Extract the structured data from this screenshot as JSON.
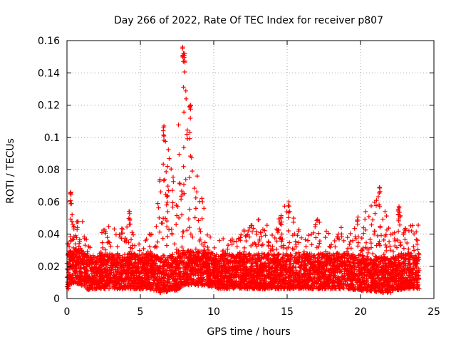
{
  "chart_data": {
    "type": "scatter",
    "title": "Day 266 of 2022, Rate Of TEC Index for receiver p807",
    "xlabel": "GPS time / hours",
    "ylabel": "ROTI / TECUs",
    "xlim": [
      0,
      25
    ],
    "ylim": [
      0,
      0.16
    ],
    "xticks": [
      0,
      5,
      10,
      15,
      20,
      25
    ],
    "xtick_labels": [
      "0",
      "5",
      "10",
      "15",
      "20",
      "25"
    ],
    "yticks": [
      0,
      0.02,
      0.04,
      0.06,
      0.08,
      0.1,
      0.12,
      0.14,
      0.16
    ],
    "ytick_labels": [
      "0",
      "0.02",
      "0.04",
      "0.06",
      "0.08",
      "0.1",
      "0.12",
      "0.14",
      "0.16"
    ],
    "grid": true,
    "marker": "plus",
    "color": "#ff0000",
    "series": [
      {
        "name": "ROTI",
        "envelope": [
          [
            0.0,
            0.005,
            0.035
          ],
          [
            0.25,
            0.008,
            0.066
          ],
          [
            0.5,
            0.01,
            0.045
          ],
          [
            1.0,
            0.008,
            0.055
          ],
          [
            1.5,
            0.005,
            0.033
          ],
          [
            2.0,
            0.006,
            0.025
          ],
          [
            2.5,
            0.006,
            0.048
          ],
          [
            3.0,
            0.006,
            0.045
          ],
          [
            3.5,
            0.006,
            0.044
          ],
          [
            4.0,
            0.006,
            0.05
          ],
          [
            4.25,
            0.006,
            0.054
          ],
          [
            4.5,
            0.006,
            0.04
          ],
          [
            5.0,
            0.006,
            0.04
          ],
          [
            5.5,
            0.006,
            0.042
          ],
          [
            6.0,
            0.005,
            0.05
          ],
          [
            6.5,
            0.003,
            0.107
          ],
          [
            7.0,
            0.005,
            0.09
          ],
          [
            7.5,
            0.005,
            0.095
          ],
          [
            7.9,
            0.008,
            0.156
          ],
          [
            8.2,
            0.008,
            0.12
          ],
          [
            8.6,
            0.008,
            0.09
          ],
          [
            9.0,
            0.008,
            0.07
          ],
          [
            9.5,
            0.008,
            0.05
          ],
          [
            10.0,
            0.006,
            0.035
          ],
          [
            11.0,
            0.006,
            0.04
          ],
          [
            12.0,
            0.006,
            0.042
          ],
          [
            13.0,
            0.006,
            0.05
          ],
          [
            14.0,
            0.006,
            0.045
          ],
          [
            15.0,
            0.006,
            0.06
          ],
          [
            16.0,
            0.006,
            0.045
          ],
          [
            17.0,
            0.006,
            0.052
          ],
          [
            18.0,
            0.006,
            0.045
          ],
          [
            19.0,
            0.006,
            0.045
          ],
          [
            20.0,
            0.005,
            0.054
          ],
          [
            21.25,
            0.004,
            0.069
          ],
          [
            22.0,
            0.003,
            0.045
          ],
          [
            22.5,
            0.005,
            0.057
          ],
          [
            23.0,
            0.006,
            0.045
          ],
          [
            24.0,
            0.006,
            0.046
          ]
        ],
        "peaks": [
          {
            "x": 0.25,
            "y": 0.066
          },
          {
            "x": 4.25,
            "y": 0.054
          },
          {
            "x": 6.6,
            "y": 0.107
          },
          {
            "x": 7.9,
            "y": 0.156
          },
          {
            "x": 8.0,
            "y": 0.152
          },
          {
            "x": 8.4,
            "y": 0.12
          },
          {
            "x": 15.1,
            "y": 0.06
          },
          {
            "x": 21.3,
            "y": 0.069
          },
          {
            "x": 22.6,
            "y": 0.057
          }
        ]
      }
    ]
  }
}
